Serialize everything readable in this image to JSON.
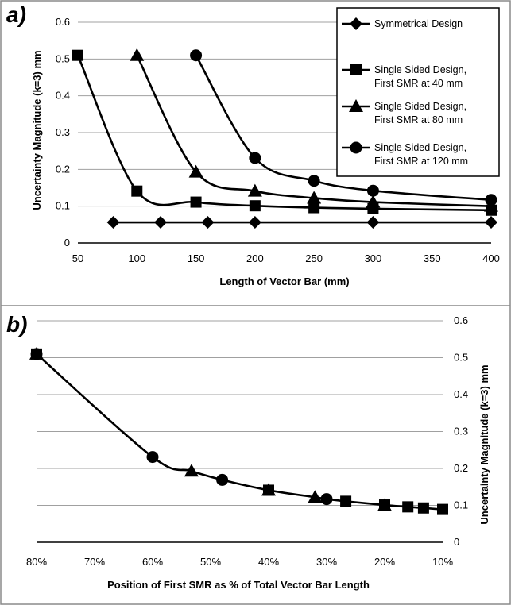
{
  "chart_data": [
    {
      "panel_label": "a)",
      "type": "line",
      "xlabel": "Length of Vector Bar (mm)",
      "ylabel": "Uncertainty Magnitude (k=3) mm",
      "xlim": [
        50,
        400
      ],
      "ylim": [
        0,
        0.6
      ],
      "xticks": [
        "50",
        "100",
        "150",
        "200",
        "250",
        "300",
        "350",
        "400"
      ],
      "yticks": [
        "0",
        "0.1",
        "0.2",
        "0.3",
        "0.4",
        "0.5",
        "0.6"
      ],
      "grid": "horizontal",
      "legend_position": "top-right",
      "series": [
        {
          "name": "Symmetrical Design",
          "marker": "diamond",
          "x": [
            80,
            120,
            160,
            200,
            300,
            400
          ],
          "y": [
            0.056,
            0.056,
            0.056,
            0.056,
            0.056,
            0.056
          ]
        },
        {
          "name": "Single Sided Design, First SMR at 40 mm",
          "marker": "square",
          "x": [
            50,
            100,
            150,
            200,
            250,
            300,
            400
          ],
          "y": [
            0.51,
            0.141,
            0.111,
            0.101,
            0.096,
            0.093,
            0.089
          ]
        },
        {
          "name": "Single Sided Design, First SMR at 80 mm",
          "marker": "triangle",
          "x": [
            100,
            150,
            200,
            250,
            300,
            400
          ],
          "y": [
            0.51,
            0.193,
            0.141,
            0.122,
            0.111,
            0.1
          ]
        },
        {
          "name": "Single Sided Design, First SMR at 120 mm",
          "marker": "circle",
          "x": [
            150,
            200,
            250,
            300,
            400
          ],
          "y": [
            0.51,
            0.231,
            0.169,
            0.142,
            0.117
          ]
        }
      ]
    },
    {
      "panel_label": "b)",
      "type": "line",
      "xlabel": "Position of First SMR as % of Total Vector Bar Length",
      "ylabel": "Uncertainty Magnitude (k=3) mm",
      "xlim": [
        80,
        10
      ],
      "ylim": [
        0,
        0.6
      ],
      "xticks": [
        "80%",
        "70%",
        "60%",
        "50%",
        "40%",
        "30%",
        "20%",
        "10%"
      ],
      "yticks": [
        "0",
        "0.1",
        "0.2",
        "0.3",
        "0.4",
        "0.5",
        "0.6"
      ],
      "grid": "horizontal",
      "y_axis_side": "right",
      "line_points": [
        [
          80,
          0.51
        ],
        [
          60,
          0.231
        ],
        [
          53.3,
          0.193
        ],
        [
          48,
          0.169
        ],
        [
          40,
          0.141
        ],
        [
          32,
          0.122
        ],
        [
          30,
          0.117
        ],
        [
          26.7,
          0.111
        ],
        [
          20,
          0.101
        ],
        [
          16,
          0.096
        ],
        [
          13.3,
          0.093
        ],
        [
          10,
          0.089
        ]
      ],
      "markers": [
        {
          "marker": "triangle",
          "x": 80,
          "y": 0.51
        },
        {
          "marker": "circle",
          "x": 80,
          "y": 0.51
        },
        {
          "marker": "square",
          "x": 80,
          "y": 0.51
        },
        {
          "marker": "circle",
          "x": 60,
          "y": 0.231
        },
        {
          "marker": "triangle",
          "x": 53.3,
          "y": 0.193
        },
        {
          "marker": "circle",
          "x": 48,
          "y": 0.169
        },
        {
          "marker": "square",
          "x": 40,
          "y": 0.141
        },
        {
          "marker": "triangle",
          "x": 40,
          "y": 0.141
        },
        {
          "marker": "triangle",
          "x": 32,
          "y": 0.122
        },
        {
          "marker": "circle",
          "x": 30,
          "y": 0.117
        },
        {
          "marker": "square",
          "x": 26.7,
          "y": 0.111
        },
        {
          "marker": "square",
          "x": 20,
          "y": 0.101
        },
        {
          "marker": "triangle",
          "x": 20,
          "y": 0.1
        },
        {
          "marker": "square",
          "x": 16,
          "y": 0.096
        },
        {
          "marker": "square",
          "x": 13.3,
          "y": 0.093
        },
        {
          "marker": "square",
          "x": 10,
          "y": 0.089
        }
      ]
    }
  ]
}
